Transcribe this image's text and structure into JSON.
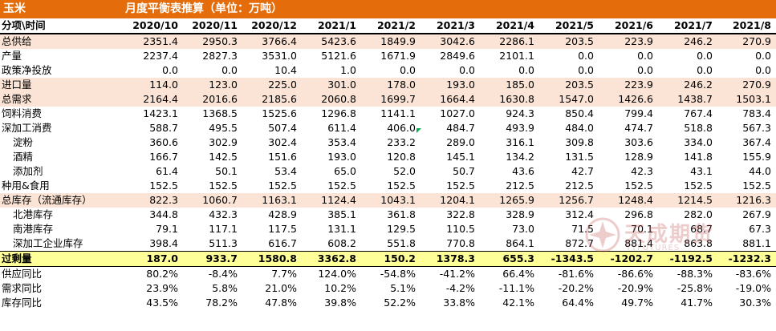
{
  "title": {
    "product": "玉米",
    "heading": "月度平衡表推算（单位：万吨）"
  },
  "table": {
    "corner": "分项\\时间",
    "periods": [
      "2020/10",
      "2020/11",
      "2020/12",
      "2021/1",
      "2021/2",
      "2021/3",
      "2021/4",
      "2021/5",
      "2021/6",
      "2021/7",
      "2021/8"
    ],
    "rows": [
      {
        "label": "总供给",
        "style": "shade",
        "indent": false,
        "values": [
          "2351.4",
          "2950.3",
          "3766.4",
          "5423.6",
          "1849.9",
          "3042.6",
          "2286.1",
          "203.5",
          "223.9",
          "246.2",
          "270.9"
        ]
      },
      {
        "label": "产量",
        "style": "plain",
        "indent": false,
        "values": [
          "2237.4",
          "2827.3",
          "3531.0",
          "5121.6",
          "1671.9",
          "2849.6",
          "2101.1",
          "0.0",
          "0.0",
          "0.0",
          "0.0"
        ]
      },
      {
        "label": "政策净投放",
        "style": "plain",
        "indent": false,
        "values": [
          "0.0",
          "0.0",
          "10.4",
          "1.0",
          "0.0",
          "0.0",
          "0.0",
          "0.0",
          "0.0",
          "0.0",
          "0.0"
        ]
      },
      {
        "label": "进口量",
        "style": "shade",
        "indent": false,
        "values": [
          "114.0",
          "123.0",
          "225.0",
          "301.0",
          "178.0",
          "193.0",
          "185.0",
          "203.5",
          "223.9",
          "246.2",
          "270.9"
        ]
      },
      {
        "label": "总需求",
        "style": "shade",
        "indent": false,
        "values": [
          "2164.4",
          "2016.6",
          "2185.6",
          "2060.8",
          "1699.7",
          "1664.4",
          "1630.8",
          "1547.0",
          "1426.6",
          "1438.7",
          "1503.1"
        ]
      },
      {
        "label": "饲料消费",
        "style": "plain",
        "indent": false,
        "values": [
          "1423.1",
          "1368.5",
          "1525.6",
          "1296.8",
          "1141.1",
          "1027.0",
          "924.3",
          "850.4",
          "799.4",
          "767.4",
          "783.4"
        ]
      },
      {
        "label": "深加工消费",
        "style": "plain",
        "indent": false,
        "values": [
          "588.7",
          "495.5",
          "507.4",
          "611.4",
          "406.0",
          "484.7",
          "493.9",
          "484.0",
          "474.7",
          "518.8",
          "567.3"
        ]
      },
      {
        "label": "淀粉",
        "style": "plain",
        "indent": true,
        "values": [
          "360.6",
          "302.9",
          "302.4",
          "353.4",
          "233.2",
          "289.0",
          "316.1",
          "309.8",
          "303.6",
          "334.0",
          "367.4"
        ]
      },
      {
        "label": "酒精",
        "style": "plain",
        "indent": true,
        "values": [
          "166.7",
          "142.5",
          "151.6",
          "193.0",
          "120.8",
          "145.1",
          "134.2",
          "131.5",
          "128.9",
          "141.8",
          "155.9"
        ]
      },
      {
        "label": "添加剂",
        "style": "plain",
        "indent": true,
        "values": [
          "61.4",
          "50.1",
          "53.4",
          "65.0",
          "52.0",
          "50.7",
          "43.6",
          "42.7",
          "42.3",
          "43.1",
          "44.0"
        ]
      },
      {
        "label": "种用&食用",
        "style": "plain",
        "indent": false,
        "values": [
          "152.5",
          "152.5",
          "152.5",
          "152.5",
          "152.5",
          "152.5",
          "212.5",
          "212.5",
          "152.5",
          "152.5",
          "152.5"
        ]
      },
      {
        "label": "总库存（流通库存）",
        "style": "shade",
        "indent": false,
        "values": [
          "822.3",
          "1060.7",
          "1163.1",
          "1124.4",
          "1043.1",
          "1204.1",
          "1265.9",
          "1256.7",
          "1248.4",
          "1214.5",
          "1216.3"
        ]
      },
      {
        "label": "北港库存",
        "style": "plain",
        "indent": true,
        "values": [
          "344.8",
          "432.3",
          "428.9",
          "385.1",
          "361.8",
          "322.8",
          "328.9",
          "312.4",
          "296.8",
          "282.0",
          "267.9"
        ]
      },
      {
        "label": "南港库存",
        "style": "plain",
        "indent": true,
        "values": [
          "79.1",
          "117.1",
          "117.5",
          "131.1",
          "129.5",
          "110.5",
          "73.0",
          "71.5",
          "70.1",
          "68.7",
          "67.3"
        ]
      },
      {
        "label": "深加工企业库存",
        "style": "plain",
        "indent": true,
        "values": [
          "398.4",
          "511.3",
          "616.7",
          "608.2",
          "551.8",
          "770.8",
          "864.1",
          "872.7",
          "881.4",
          "863.8",
          "881.1"
        ]
      },
      {
        "label": "过剩量",
        "style": "surplus",
        "indent": false,
        "values": [
          "187.0",
          "933.7",
          "1580.8",
          "3362.8",
          "150.2",
          "1378.3",
          "655.3",
          "-1343.5",
          "-1202.7",
          "-1192.5",
          "-1232.3"
        ]
      },
      {
        "label": "供应同比",
        "style": "ratio",
        "indent": false,
        "values": [
          "80.2%",
          "-8.4%",
          "7.7%",
          "124.0%",
          "-54.8%",
          "-41.2%",
          "66.4%",
          "-81.6%",
          "-86.6%",
          "-88.3%",
          "-83.6%"
        ]
      },
      {
        "label": "需求同比",
        "style": "ratio",
        "indent": false,
        "values": [
          "23.9%",
          "5.8%",
          "21.0%",
          "10.2%",
          "5.1%",
          "-4.2%",
          "-11.1%",
          "-20.2%",
          "-20.9%",
          "-25.8%",
          "-19.0%"
        ]
      },
      {
        "label": "库存同比",
        "style": "ratio",
        "indent": false,
        "values": [
          "43.5%",
          "78.2%",
          "47.8%",
          "39.8%",
          "52.2%",
          "33.8%",
          "42.1%",
          "64.4%",
          "49.7%",
          "41.7%",
          "30.3%"
        ]
      }
    ]
  },
  "watermark": {
    "text": "天成期货",
    "sub": "TTFUTURES"
  },
  "colors": {
    "title_bg": "#e46c0a",
    "shade_bg": "#fbe4d5",
    "surplus_bg": "#ffff99",
    "positive": "#00a050",
    "negative": "#ff0000"
  }
}
